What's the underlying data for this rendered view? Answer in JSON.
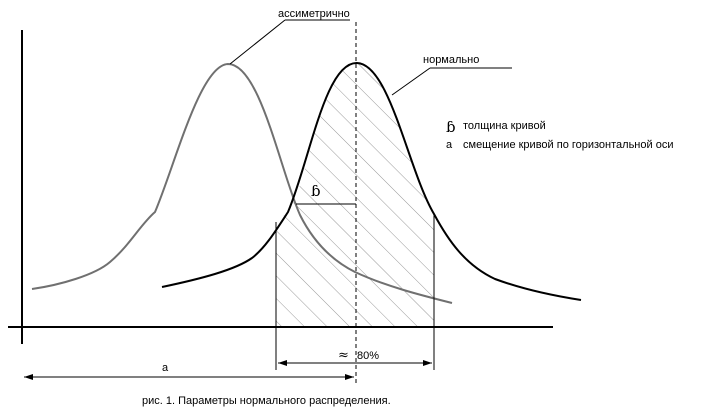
{
  "figure": {
    "caption": "рис. 1. Параметры нормального распределения.",
    "label_asymmetric": "ассиметрично",
    "label_normal": "нормально",
    "legend": {
      "b_symbol": "ɓ",
      "b_text": "толщина кривой",
      "a_symbol": "a",
      "a_text": "смещение кривой по горизонтальной оси"
    },
    "b_marker": "ɓ",
    "a_marker": "a",
    "approx_symbol": "≈",
    "percent_label": "80%"
  },
  "colors": {
    "normal_curve": "#000000",
    "asymmetric_curve": "#707070",
    "hatch": "#9a9a9a",
    "axes": "#000000"
  }
}
